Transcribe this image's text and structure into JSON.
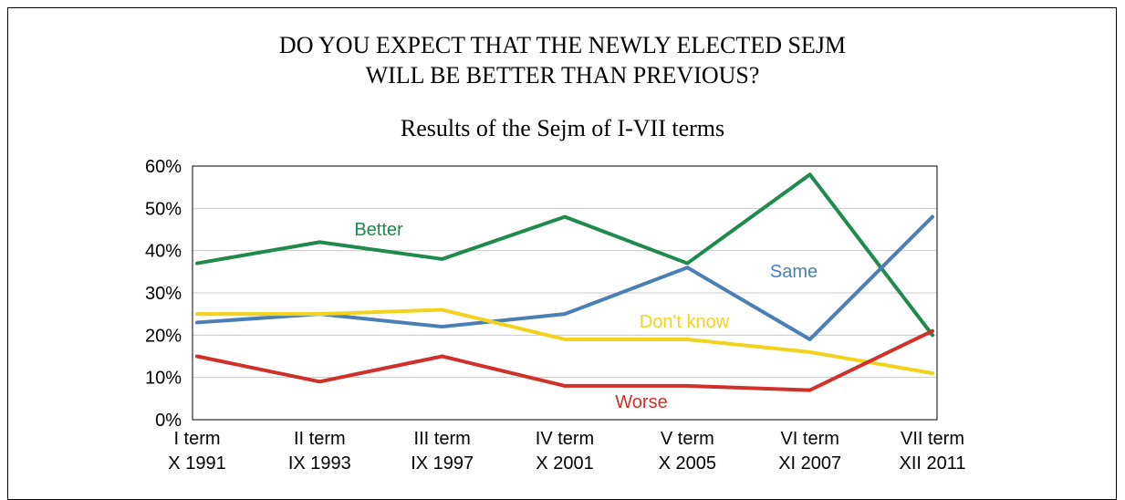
{
  "title_lines": [
    "DO YOU EXPECT THAT THE NEWLY ELECTED SEJM",
    "WILL BE BETTER THAN PREVIOUS?"
  ],
  "subtitle": "Results of the Sejm of I-VII terms",
  "chart_data": {
    "type": "line",
    "title": "DO YOU EXPECT THAT THE NEWLY ELECTED SEJM WILL BE BETTER THAN PREVIOUS?",
    "subtitle": "Results of the Sejm of I-VII terms",
    "categories": [
      [
        "I term",
        "X 1991"
      ],
      [
        "II term",
        "IX 1993"
      ],
      [
        "III term",
        "IX 1997"
      ],
      [
        "IV term",
        "X 2001"
      ],
      [
        "V term",
        "X 2005"
      ],
      [
        "VI term",
        "XI 2007"
      ],
      [
        "VII term",
        "XII 2011"
      ]
    ],
    "ylim": [
      0,
      60
    ],
    "yticks": [
      "0%",
      "10%",
      "20%",
      "30%",
      "40%",
      "50%",
      "60%"
    ],
    "grid": true,
    "series": [
      {
        "name": "Better",
        "color": "#1e8a4c",
        "values": [
          37,
          42,
          38,
          48,
          37,
          58,
          20
        ]
      },
      {
        "name": "Same",
        "color": "#4a7fb5",
        "values": [
          23,
          25,
          22,
          25,
          36,
          19,
          48
        ]
      },
      {
        "name": "Don't know",
        "color": "#f2d21b",
        "values": [
          25,
          25,
          26,
          19,
          19,
          16,
          11
        ]
      },
      {
        "name": "Worse",
        "color": "#d0302a",
        "values": [
          15,
          9,
          15,
          8,
          8,
          7,
          21
        ]
      }
    ]
  }
}
